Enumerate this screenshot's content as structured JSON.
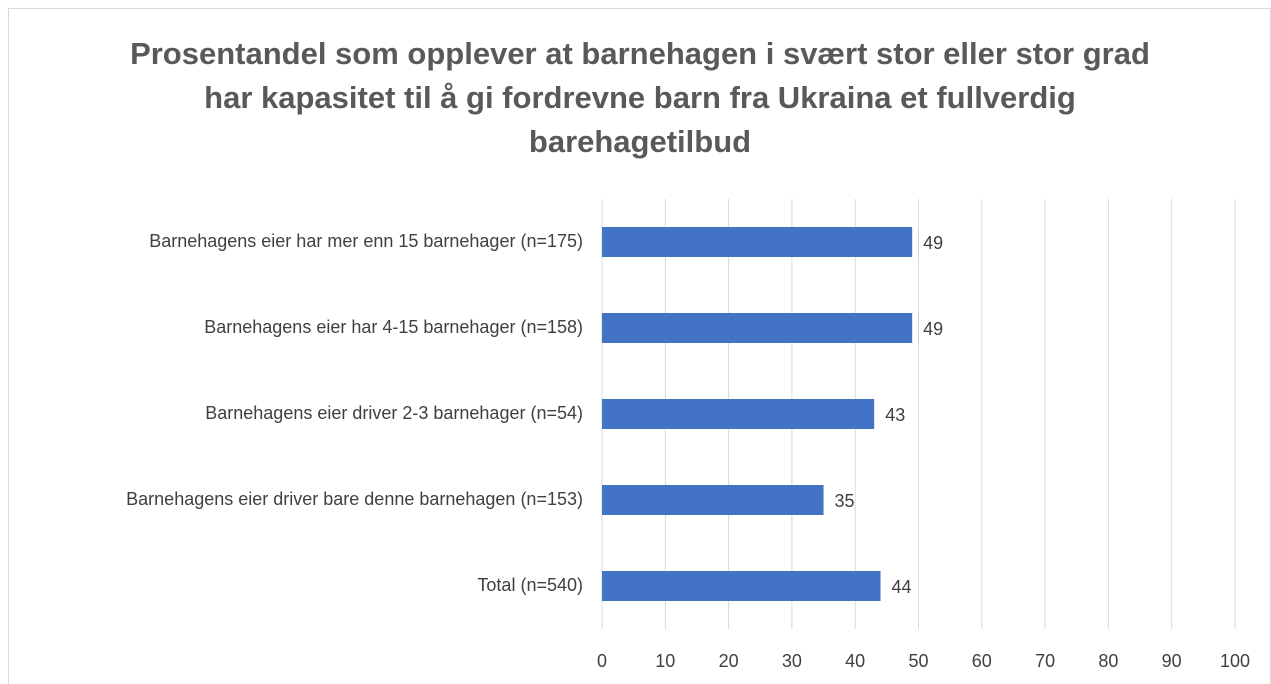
{
  "chart_data": {
    "type": "bar",
    "orientation": "horizontal",
    "title": "Prosentandel som opplever at barnehagen i svært stor eller stor grad har kapasitet til å gi fordrevne barn fra Ukraina et fullverdig barehagetilbud",
    "categories": [
      "Barnehagens eier har mer enn 15 barnehager (n=175)",
      "Barnehagens eier har 4-15 barnehager (n=158)",
      "Barnehagens eier driver 2-3 barnehager (n=54)",
      "Barnehagens eier driver bare denne barnehagen (n=153)",
      "Total (n=540)"
    ],
    "values": [
      49,
      49,
      43,
      35,
      44
    ],
    "color": "#4472c4",
    "xlim": [
      0,
      100
    ],
    "xticks": [
      0,
      10,
      20,
      30,
      40,
      50,
      60,
      70,
      80,
      90,
      100
    ],
    "grid": true
  }
}
